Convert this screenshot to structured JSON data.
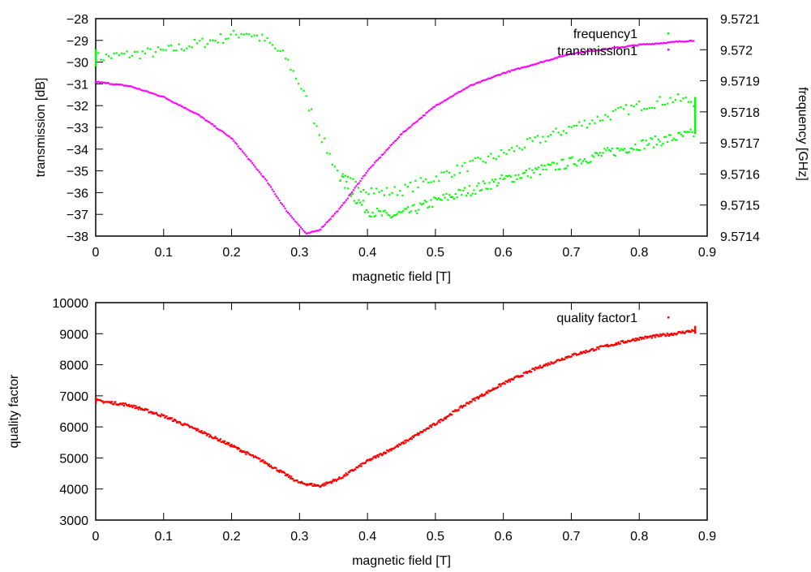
{
  "chart_data": [
    {
      "type": "scatter",
      "xlabel": "magnetic field [T]",
      "ylabel": "transmission [dB]",
      "y2label": "frequency [GHz]",
      "xlim": [
        0,
        0.9
      ],
      "ylim": [
        -38,
        -28
      ],
      "y2lim": [
        9.5714,
        9.5721
      ],
      "xticks": [
        "0",
        "0.1",
        "0.2",
        "0.3",
        "0.4",
        "0.5",
        "0.6",
        "0.7",
        "0.8",
        "0.9"
      ],
      "yticks": [
        "-28",
        "-29",
        "-30",
        "-31",
        "-32",
        "-33",
        "-34",
        "-35",
        "-36",
        "-37",
        "-38"
      ],
      "y2ticks": [
        "9.5721",
        "9.572",
        "9.5719",
        "9.5718",
        "9.5717",
        "9.5716",
        "9.5715",
        "9.5714"
      ],
      "grid": false,
      "legend_position": "top-right",
      "series": [
        {
          "name": "frequency1",
          "axis": "right",
          "color": "#00ff00",
          "branches": [
            {
              "x": [
                0,
                0.1,
                0.2,
                0.22,
                0.25,
                0.28,
                0.3,
                0.32,
                0.34,
                0.36,
                0.38,
                0.4,
                0.42,
                0.45,
                0.5,
                0.6,
                0.7,
                0.8,
                0.85,
                0.88
              ],
              "y": [
                9.571974,
                9.571995,
                9.572044,
                9.572058,
                9.57203,
                9.571974,
                9.57189,
                9.571785,
                9.57168,
                9.571589,
                9.571568,
                9.571554,
                9.57154,
                9.571547,
                9.571589,
                9.571666,
                9.57175,
                9.57182,
                9.571841,
                9.571834
              ]
            },
            {
              "x": [
                0.36,
                0.38,
                0.4,
                0.43,
                0.46,
                0.5,
                0.6,
                0.7,
                0.8,
                0.88
              ],
              "y": [
                9.571589,
                9.571526,
                9.571484,
                9.571463,
                9.571477,
                9.571512,
                9.571582,
                9.571638,
                9.571694,
                9.571729
              ]
            }
          ]
        },
        {
          "name": "transmission1",
          "axis": "left",
          "color": "#ff00ff",
          "x": [
            0,
            0.05,
            0.1,
            0.15,
            0.2,
            0.25,
            0.28,
            0.31,
            0.33,
            0.36,
            0.4,
            0.45,
            0.5,
            0.55,
            0.6,
            0.7,
            0.8,
            0.88
          ],
          "y": [
            -30.9,
            -31.1,
            -31.6,
            -32.4,
            -33.5,
            -35.4,
            -36.8,
            -37.9,
            -37.7,
            -36.7,
            -35.0,
            -33.3,
            -32.0,
            -31.1,
            -30.5,
            -29.6,
            -29.2,
            -29.0
          ]
        }
      ]
    },
    {
      "type": "scatter",
      "xlabel": "magnetic field [T]",
      "ylabel": "quality factor",
      "xlim": [
        0,
        0.9
      ],
      "ylim": [
        3000,
        10000
      ],
      "xticks": [
        "0",
        "0.1",
        "0.2",
        "0.3",
        "0.4",
        "0.5",
        "0.6",
        "0.7",
        "0.8",
        "0.9"
      ],
      "yticks": [
        "3000",
        "4000",
        "5000",
        "6000",
        "7000",
        "8000",
        "9000",
        "10000"
      ],
      "grid": false,
      "legend_position": "top-right",
      "series": [
        {
          "name": "quality factor1",
          "color": "#ff0000",
          "x": [
            0,
            0.05,
            0.1,
            0.15,
            0.2,
            0.25,
            0.3,
            0.33,
            0.36,
            0.4,
            0.45,
            0.5,
            0.55,
            0.6,
            0.65,
            0.7,
            0.75,
            0.8,
            0.85,
            0.88
          ],
          "y": [
            6850,
            6700,
            6350,
            5900,
            5400,
            4850,
            4200,
            4100,
            4350,
            4900,
            5450,
            6100,
            6800,
            7400,
            7900,
            8300,
            8600,
            8850,
            9000,
            9100
          ]
        }
      ]
    }
  ]
}
